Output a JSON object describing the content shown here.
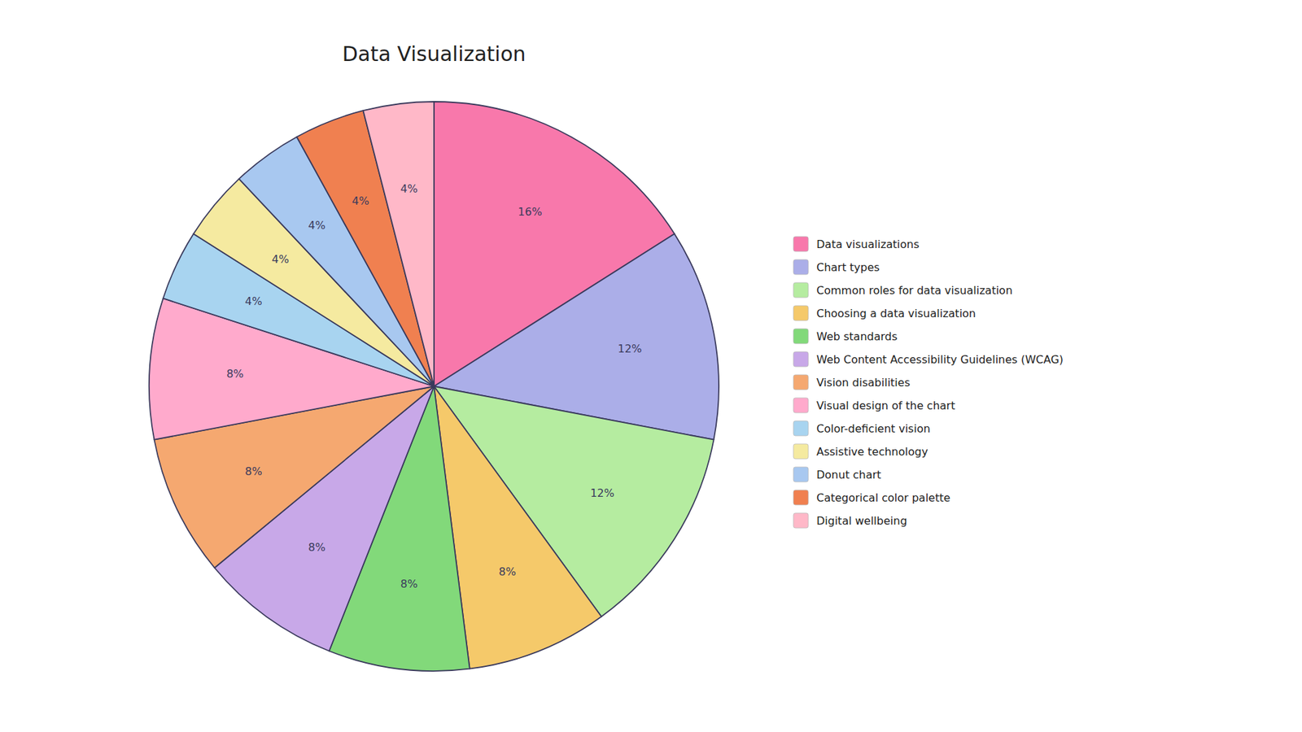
{
  "chart_data": {
    "type": "pie",
    "title": "Data Visualization",
    "categories": [
      "Data visualizations",
      "Chart types",
      "Common roles for data visualization",
      "Choosing a data visualization",
      "Web standards",
      "Web Content Accessibility Guidelines (WCAG)",
      "Vision disabilities",
      "Visual design of the chart",
      "Color-deficient vision",
      "Assistive technology",
      "Donut chart",
      "Categorical color palette",
      "Digital wellbeing"
    ],
    "values": [
      16,
      12,
      12,
      8,
      8,
      8,
      8,
      8,
      4,
      4,
      4,
      4,
      4
    ],
    "value_labels": [
      "16%",
      "12%",
      "12%",
      "8%",
      "8%",
      "8%",
      "8%",
      "8%",
      "4%",
      "4%",
      "4%",
      "4%",
      "4%"
    ],
    "colors": [
      "#F878AB",
      "#ABAEE8",
      "#B5ECA0",
      "#F5C96A",
      "#82D97A",
      "#C8A8E8",
      "#F5A870",
      "#FFAACC",
      "#A8D4F0",
      "#F5EAA0",
      "#A8C8F0",
      "#F08050",
      "#FFB8C8"
    ],
    "data_labels": true,
    "legend": "right"
  }
}
